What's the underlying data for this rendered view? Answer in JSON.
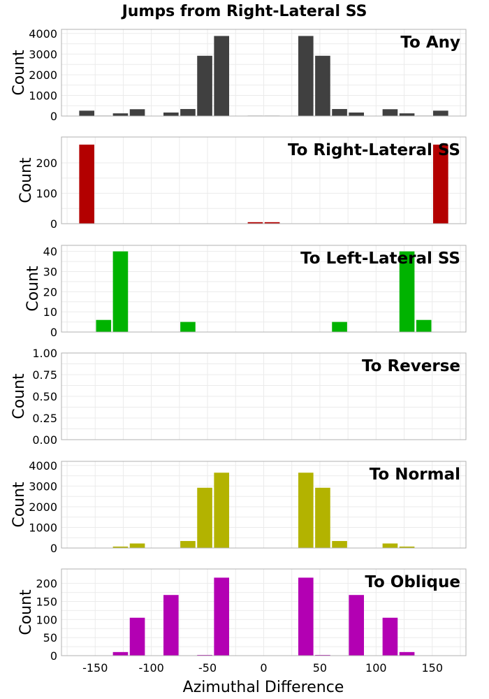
{
  "title": "Jumps from Right-Lateral SS",
  "xlabel": "Azimuthal Difference",
  "ylabel": "Count",
  "xticks": [
    "-150",
    "-100",
    "-50",
    "0",
    "50",
    "100",
    "150"
  ],
  "chart_data": [
    {
      "type": "bar",
      "title": "To Any",
      "color": "#404040",
      "ylabel": "Count",
      "xlim": [
        -180,
        180
      ],
      "ylim": [
        0,
        4200
      ],
      "yticks": [
        "0",
        "1000",
        "2000",
        "3000",
        "4000"
      ],
      "bin_width": 15,
      "x": [
        -157.5,
        -142.5,
        -127.5,
        -112.5,
        -97.5,
        -82.5,
        -67.5,
        -52.5,
        -37.5,
        -22.5,
        -7.5,
        7.5,
        22.5,
        37.5,
        52.5,
        67.5,
        82.5,
        97.5,
        112.5,
        127.5,
        142.5,
        157.5
      ],
      "values": [
        260,
        20,
        130,
        330,
        0,
        170,
        340,
        2920,
        3880,
        0,
        20,
        20,
        0,
        3880,
        2920,
        340,
        170,
        0,
        330,
        130,
        20,
        260
      ]
    },
    {
      "type": "bar",
      "title": "To Right-Lateral SS",
      "color": "#b30000",
      "ylabel": "Count",
      "xlim": [
        -180,
        180
      ],
      "ylim": [
        0,
        285
      ],
      "yticks": [
        "0",
        "100",
        "200"
      ],
      "bin_width": 15,
      "x": [
        -157.5,
        -142.5,
        -127.5,
        -112.5,
        -97.5,
        -82.5,
        -67.5,
        -52.5,
        -37.5,
        -22.5,
        -7.5,
        7.5,
        22.5,
        37.5,
        52.5,
        67.5,
        82.5,
        97.5,
        112.5,
        127.5,
        142.5,
        157.5
      ],
      "values": [
        260,
        0,
        0,
        0,
        0,
        0,
        0,
        0,
        0,
        0,
        5,
        5,
        0,
        0,
        0,
        0,
        0,
        0,
        0,
        0,
        0,
        260
      ]
    },
    {
      "type": "bar",
      "title": "To Left-Lateral SS",
      "color": "#00b300",
      "ylabel": "Count",
      "xlim": [
        -180,
        180
      ],
      "ylim": [
        0,
        43
      ],
      "yticks": [
        "0",
        "10",
        "20",
        "30",
        "40"
      ],
      "bin_width": 15,
      "x": [
        -157.5,
        -142.5,
        -127.5,
        -112.5,
        -97.5,
        -82.5,
        -67.5,
        -52.5,
        -37.5,
        -22.5,
        -7.5,
        7.5,
        22.5,
        37.5,
        52.5,
        67.5,
        82.5,
        97.5,
        112.5,
        127.5,
        142.5,
        157.5
      ],
      "values": [
        0,
        6,
        40,
        0,
        0,
        0,
        5,
        0,
        0,
        0,
        0,
        0,
        0,
        0,
        0,
        5,
        0,
        0,
        0,
        40,
        6,
        0
      ]
    },
    {
      "type": "bar",
      "title": "To Reverse",
      "color": "#888888",
      "ylabel": "Count",
      "xlim": [
        -180,
        180
      ],
      "ylim": [
        0,
        1
      ],
      "yticks": [
        "0.00",
        "0.25",
        "0.50",
        "0.75",
        "1.00"
      ],
      "bin_width": 15,
      "x": [],
      "values": []
    },
    {
      "type": "bar",
      "title": "To Normal",
      "color": "#b3b300",
      "ylabel": "Count",
      "xlim": [
        -180,
        180
      ],
      "ylim": [
        0,
        4200
      ],
      "yticks": [
        "0",
        "1000",
        "2000",
        "3000",
        "4000"
      ],
      "bin_width": 15,
      "x": [
        -157.5,
        -142.5,
        -127.5,
        -112.5,
        -97.5,
        -82.5,
        -67.5,
        -52.5,
        -37.5,
        -22.5,
        -7.5,
        7.5,
        22.5,
        37.5,
        52.5,
        67.5,
        82.5,
        97.5,
        112.5,
        127.5,
        142.5,
        157.5
      ],
      "values": [
        0,
        0,
        70,
        220,
        0,
        0,
        340,
        2920,
        3650,
        0,
        0,
        0,
        0,
        3650,
        2920,
        340,
        0,
        0,
        220,
        70,
        0,
        0
      ]
    },
    {
      "type": "bar",
      "title": "To Oblique",
      "color": "#b300b3",
      "ylabel": "Count",
      "xlim": [
        -180,
        180
      ],
      "ylim": [
        0,
        240
      ],
      "yticks": [
        "0",
        "50",
        "100",
        "150",
        "200"
      ],
      "bin_width": 15,
      "x": [
        -157.5,
        -142.5,
        -127.5,
        -112.5,
        -97.5,
        -82.5,
        -67.5,
        -52.5,
        -37.5,
        -22.5,
        -7.5,
        7.5,
        22.5,
        37.5,
        52.5,
        67.5,
        82.5,
        97.5,
        112.5,
        127.5,
        142.5,
        157.5
      ],
      "values": [
        0,
        0,
        10,
        105,
        0,
        168,
        0,
        2,
        216,
        0,
        0,
        0,
        0,
        216,
        2,
        0,
        168,
        0,
        105,
        10,
        0,
        0
      ]
    }
  ]
}
